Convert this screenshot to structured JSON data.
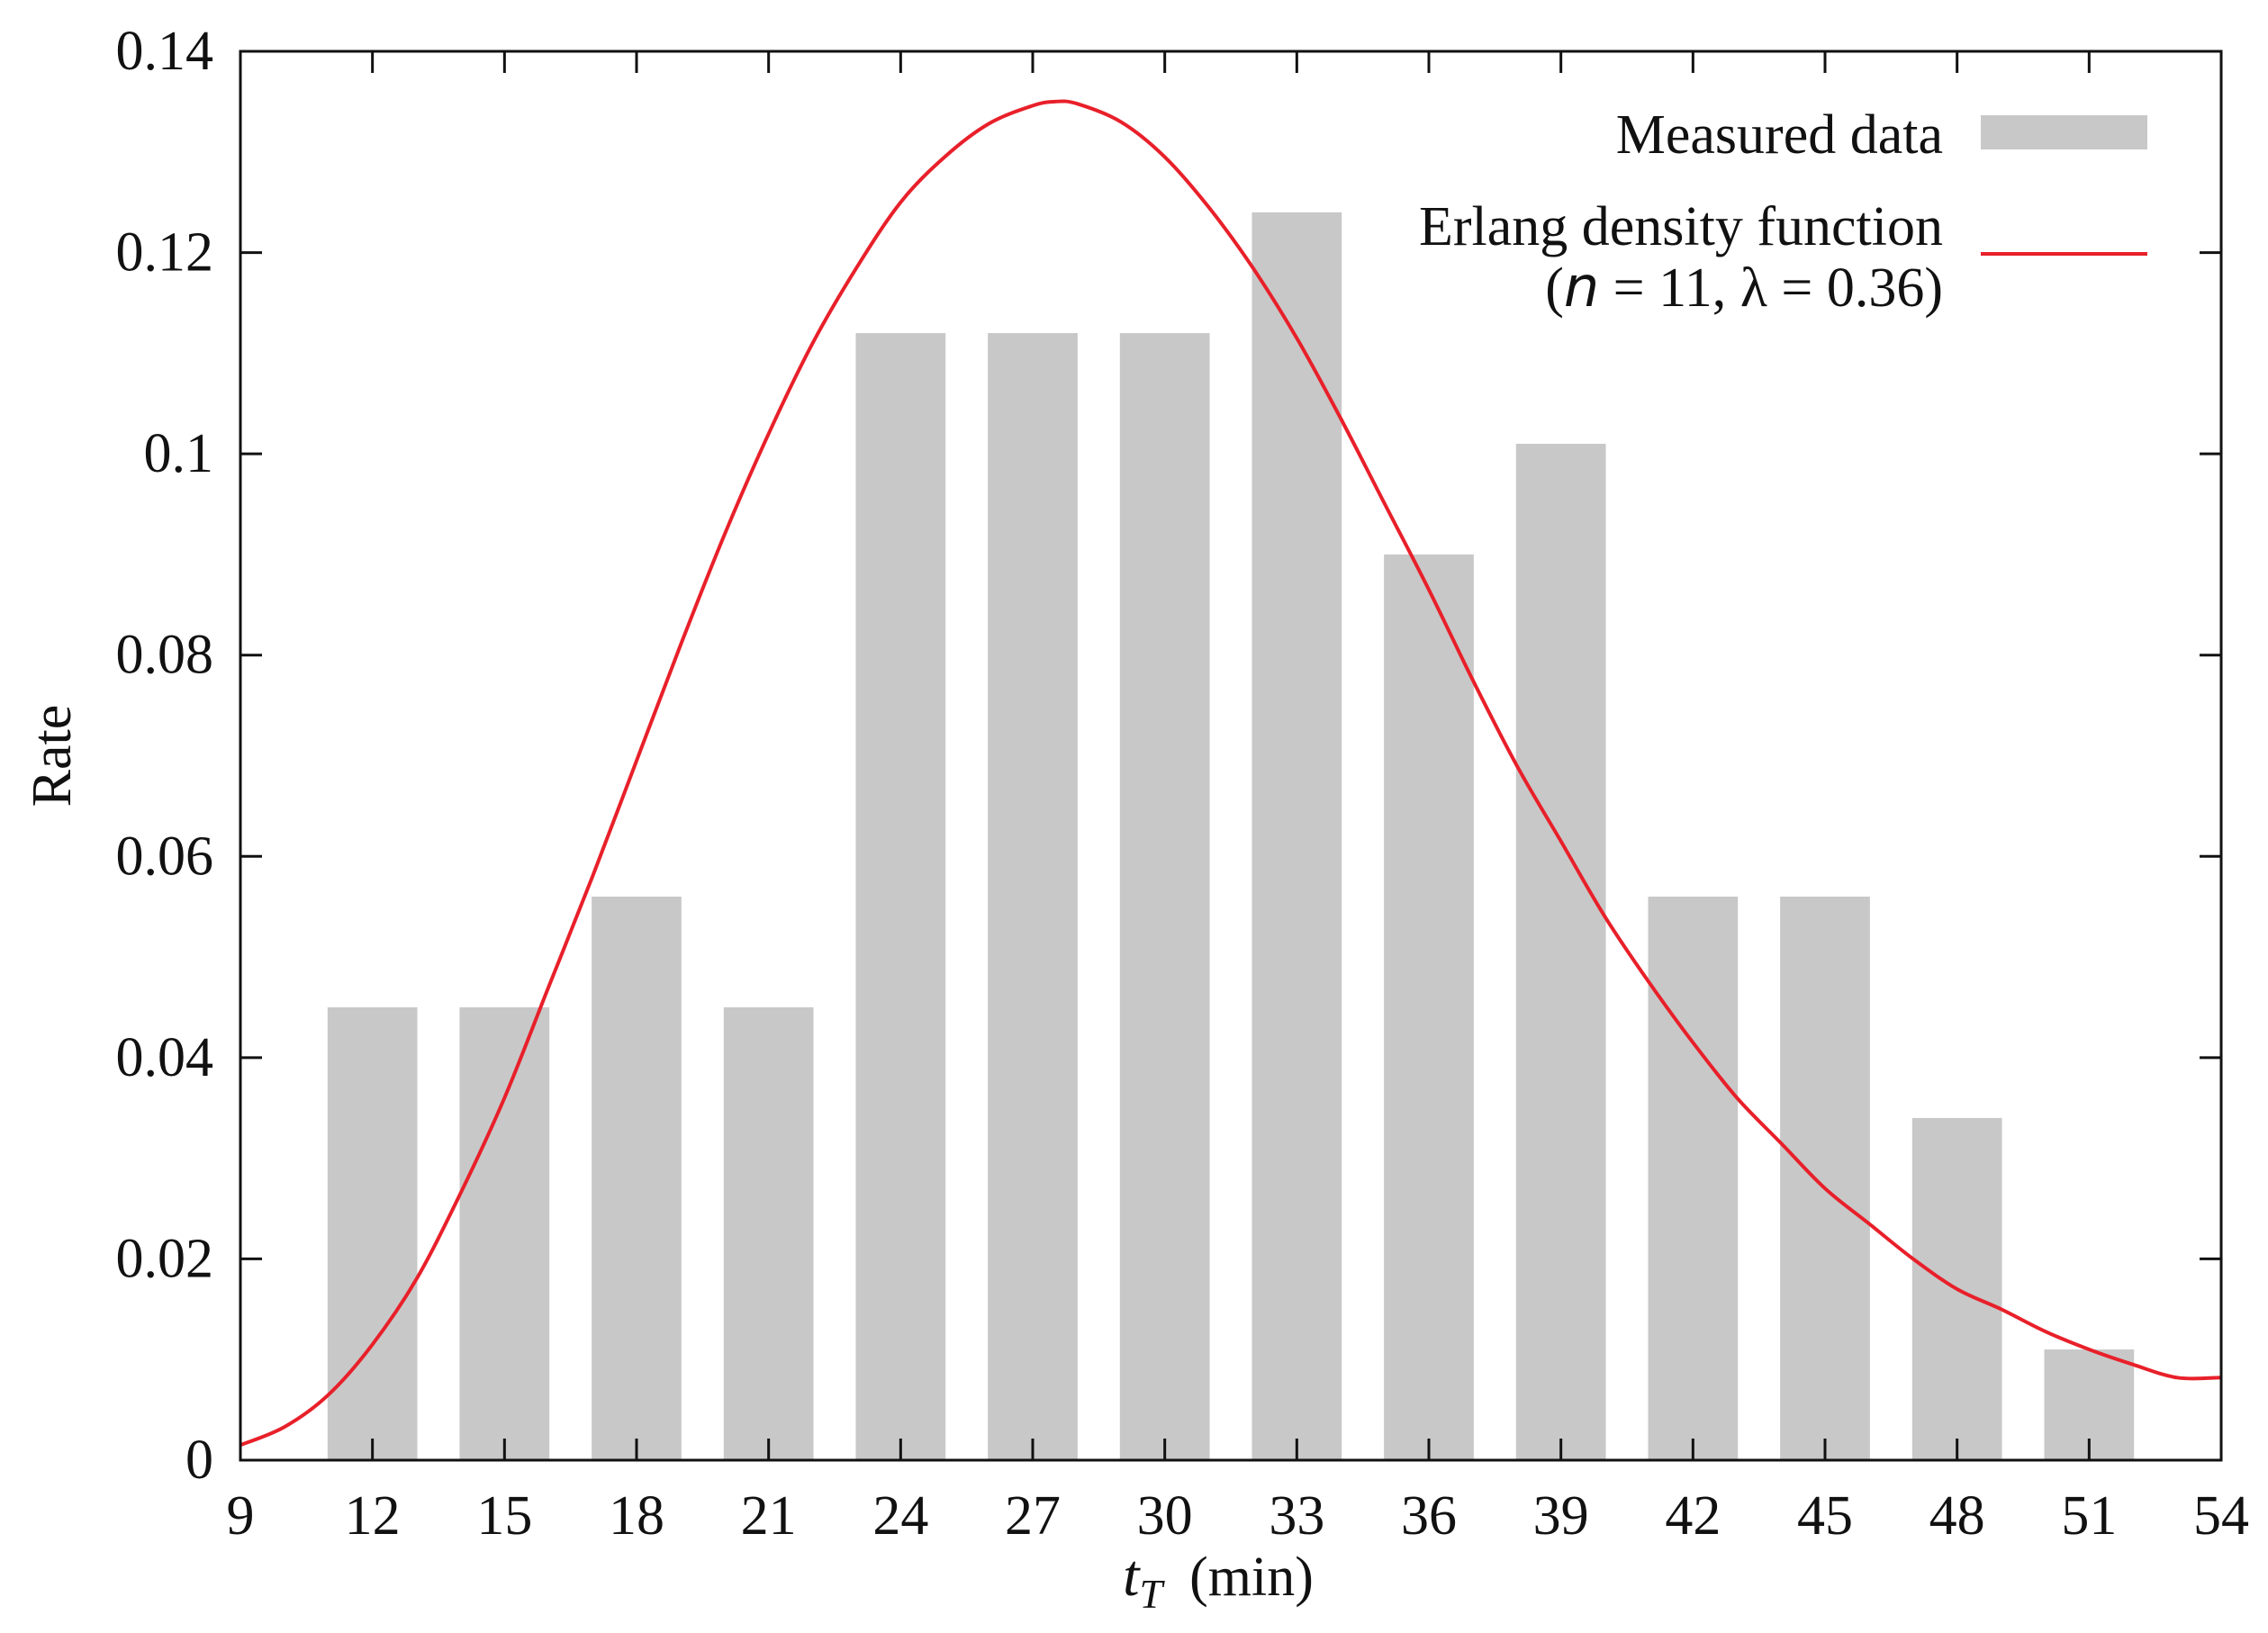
{
  "chart_data": {
    "type": "bar",
    "title": "",
    "xlabel": {
      "var": "t",
      "sub": "T",
      "unit": "(min)"
    },
    "ylabel": "Rate",
    "xlim": [
      9,
      54
    ],
    "ylim": [
      0,
      0.14
    ],
    "xticks": [
      9,
      12,
      15,
      18,
      21,
      24,
      27,
      30,
      33,
      36,
      39,
      42,
      45,
      48,
      51,
      54
    ],
    "xtick_labels": [
      "9",
      "12",
      "15",
      "18",
      "21",
      "24",
      "27",
      "30",
      "33",
      "36",
      "39",
      "42",
      "45",
      "48",
      "51",
      "54"
    ],
    "yticks": [
      0,
      0.02,
      0.04,
      0.06,
      0.08,
      0.1,
      0.12,
      0.14
    ],
    "ytick_labels": [
      "0",
      "0.02",
      "0.04",
      "0.06",
      "0.08",
      "0.1",
      "0.12",
      "0.14"
    ],
    "grid": false,
    "legend_position": "top-right",
    "series": [
      {
        "name": "Measured data",
        "type": "bar",
        "color": "#c8c8c8",
        "bin_width": 3,
        "x": [
          12,
          15,
          18,
          21,
          24,
          27,
          30,
          33,
          36,
          39,
          42,
          45,
          48,
          51
        ],
        "values": [
          0.045,
          0.045,
          0.056,
          0.045,
          0.112,
          0.112,
          0.112,
          0.124,
          0.09,
          0.101,
          0.056,
          0.056,
          0.034,
          0.011
        ]
      },
      {
        "name": "Erlang density function",
        "name_line2": {
          "open": "(",
          "n_var": "n",
          "n_eq": " = 11, ",
          "lambda_var": "λ",
          "lambda_eq": " = 0.36)"
        },
        "type": "line",
        "color": "#e8202a",
        "x": [
          9,
          10,
          11,
          12,
          13,
          14,
          15,
          16,
          17,
          18,
          19,
          20,
          21,
          22,
          23,
          24,
          25,
          26,
          27,
          27.5,
          28,
          29,
          30,
          31,
          32,
          33,
          34,
          35,
          36,
          37,
          38,
          39,
          40,
          41,
          42,
          43,
          44,
          45,
          46,
          47,
          48,
          49,
          50,
          51,
          52,
          53,
          54
        ],
        "values": [
          0.0015,
          0.0033,
          0.0065,
          0.0115,
          0.018,
          0.0265,
          0.036,
          0.047,
          0.058,
          0.0695,
          0.081,
          0.092,
          0.102,
          0.111,
          0.1185,
          0.125,
          0.1295,
          0.1328,
          0.1346,
          0.135,
          0.1348,
          0.133,
          0.1295,
          0.1245,
          0.1185,
          0.1115,
          0.1035,
          0.095,
          0.0865,
          0.0775,
          0.069,
          0.0615,
          0.054,
          0.0475,
          0.0415,
          0.036,
          0.0315,
          0.027,
          0.0235,
          0.02,
          0.017,
          0.015,
          0.0128,
          0.011,
          0.0095,
          0.0082,
          0.0082
        ]
      }
    ]
  }
}
